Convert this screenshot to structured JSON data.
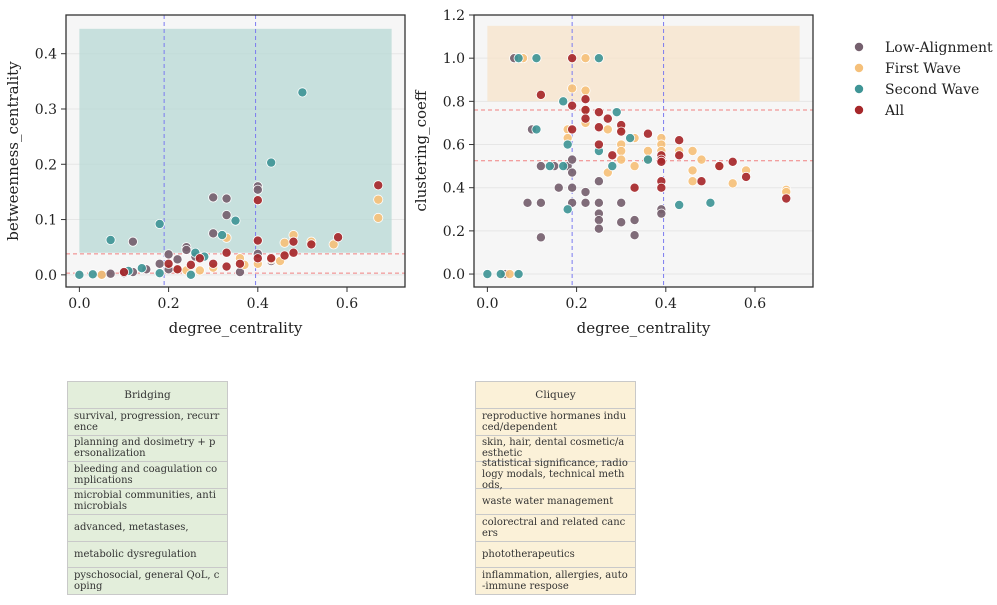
{
  "legend": {
    "entries": [
      {
        "label": "Low-Alignment",
        "color": "#75606e"
      },
      {
        "label": "First Wave",
        "color": "#f5c07a"
      },
      {
        "label": "Second Wave",
        "color": "#3f9596"
      },
      {
        "label": "All",
        "color": "#a6272a"
      }
    ]
  },
  "chart_data": [
    {
      "type": "scatter",
      "xlabel": "degree_centrality",
      "ylabel": "betweenness_centrality",
      "xlim": [
        -0.03,
        0.73
      ],
      "ylim": [
        -0.022,
        0.47
      ],
      "xticks": [
        "0.0",
        "0.2",
        "0.4",
        "0.6"
      ],
      "yticks": [
        "0.0",
        "0.1",
        "0.2",
        "0.3",
        "0.4"
      ],
      "shaded_region": {
        "x": [
          0.0,
          0.7
        ],
        "y": [
          0.04,
          0.445
        ],
        "color": "#b7d8d4"
      },
      "vlines": [
        0.19,
        0.395
      ],
      "hlines": [
        0.038,
        0.003
      ],
      "series": [
        {
          "name": "Low-Alignment",
          "points": [
            [
              0.05,
              0
            ],
            [
              0.07,
              0.002
            ],
            [
              0.1,
              0.003
            ],
            [
              0.12,
              0.005
            ],
            [
              0.12,
              0.06
            ],
            [
              0.15,
              0.01
            ],
            [
              0.18,
              0.02
            ],
            [
              0.2,
              0.01
            ],
            [
              0.2,
              0.037
            ],
            [
              0.22,
              0.028
            ],
            [
              0.24,
              0.05
            ],
            [
              0.24,
              0.045
            ],
            [
              0.26,
              0.033
            ],
            [
              0.3,
              0.075
            ],
            [
              0.3,
              0.14
            ],
            [
              0.33,
              0.138
            ],
            [
              0.33,
              0.108
            ],
            [
              0.36,
              0.005
            ],
            [
              0.4,
              0.16
            ],
            [
              0.4,
              0.154
            ],
            [
              0.4,
              0.038
            ],
            [
              0.43,
              0.025
            ]
          ]
        },
        {
          "name": "First Wave",
          "points": [
            [
              0.05,
              0
            ],
            [
              0.22,
              0.01
            ],
            [
              0.24,
              0.008
            ],
            [
              0.27,
              0.008
            ],
            [
              0.3,
              0.013
            ],
            [
              0.33,
              0.067
            ],
            [
              0.36,
              0.03
            ],
            [
              0.37,
              0.018
            ],
            [
              0.4,
              0.02
            ],
            [
              0.43,
              0.028
            ],
            [
              0.45,
              0.025
            ],
            [
              0.46,
              0.058
            ],
            [
              0.48,
              0.072
            ],
            [
              0.52,
              0.06
            ],
            [
              0.57,
              0.055
            ],
            [
              0.67,
              0.103
            ],
            [
              0.67,
              0.136
            ]
          ]
        },
        {
          "name": "Second Wave",
          "points": [
            [
              0.0,
              0
            ],
            [
              0.03,
              0.001
            ],
            [
              0.07,
              0.063
            ],
            [
              0.11,
              0.007
            ],
            [
              0.14,
              0.012
            ],
            [
              0.18,
              0.003
            ],
            [
              0.18,
              0.092
            ],
            [
              0.25,
              0.0
            ],
            [
              0.26,
              0.04
            ],
            [
              0.28,
              0.033
            ],
            [
              0.32,
              0.072
            ],
            [
              0.35,
              0.098
            ],
            [
              0.43,
              0.203
            ],
            [
              0.5,
              0.33
            ]
          ]
        },
        {
          "name": "All",
          "points": [
            [
              0.1,
              0.005
            ],
            [
              0.2,
              0.02
            ],
            [
              0.22,
              0.01
            ],
            [
              0.25,
              0.018
            ],
            [
              0.27,
              0.03
            ],
            [
              0.3,
              0.02
            ],
            [
              0.33,
              0.015
            ],
            [
              0.33,
              0.04
            ],
            [
              0.36,
              0.02
            ],
            [
              0.4,
              0.062
            ],
            [
              0.4,
              0.03
            ],
            [
              0.4,
              0.135
            ],
            [
              0.43,
              0.03
            ],
            [
              0.46,
              0.035
            ],
            [
              0.48,
              0.04
            ],
            [
              0.48,
              0.06
            ],
            [
              0.52,
              0.055
            ],
            [
              0.58,
              0.068
            ],
            [
              0.67,
              0.162
            ]
          ]
        }
      ]
    },
    {
      "type": "scatter",
      "xlabel": "degree_centrality",
      "ylabel": "clustering_coeff",
      "xlim": [
        -0.03,
        0.73
      ],
      "ylim": [
        -0.06,
        1.2
      ],
      "xticks": [
        "0.0",
        "0.2",
        "0.4",
        "0.6"
      ],
      "yticks": [
        "0.0",
        "0.2",
        "0.4",
        "0.6",
        "0.8",
        "1.0",
        "1.2"
      ],
      "shaded_region": {
        "x": [
          0.0,
          0.7
        ],
        "y": [
          0.8,
          1.15
        ],
        "color": "#f7e3c9"
      },
      "vlines": [
        0.19,
        0.395
      ],
      "hlines": [
        0.76,
        0.525
      ],
      "series": [
        {
          "name": "Low-Alignment",
          "points": [
            [
              0.04,
              0
            ],
            [
              0.06,
              1.0
            ],
            [
              0.09,
              0.33
            ],
            [
              0.1,
              0.67
            ],
            [
              0.12,
              0.33
            ],
            [
              0.12,
              0.17
            ],
            [
              0.12,
              0.5
            ],
            [
              0.15,
              0.5
            ],
            [
              0.16,
              0.4
            ],
            [
              0.18,
              0.5
            ],
            [
              0.19,
              0.4
            ],
            [
              0.19,
              0.47
            ],
            [
              0.19,
              0.33
            ],
            [
              0.19,
              0.53
            ],
            [
              0.22,
              0.38
            ],
            [
              0.22,
              0.33
            ],
            [
              0.25,
              0.33
            ],
            [
              0.25,
              0.28
            ],
            [
              0.25,
              0.25
            ],
            [
              0.25,
              0.21
            ],
            [
              0.25,
              0.43
            ],
            [
              0.3,
              0.33
            ],
            [
              0.3,
              0.24
            ],
            [
              0.33,
              0.18
            ],
            [
              0.33,
              0.25
            ],
            [
              0.39,
              0.3
            ],
            [
              0.39,
              0.28
            ]
          ]
        },
        {
          "name": "First Wave",
          "points": [
            [
              0.05,
              0
            ],
            [
              0.08,
              1.0
            ],
            [
              0.18,
              0.67
            ],
            [
              0.18,
              0.63
            ],
            [
              0.19,
              0.86
            ],
            [
              0.22,
              0.76
            ],
            [
              0.22,
              1.0
            ],
            [
              0.22,
              0.85
            ],
            [
              0.22,
              0.7
            ],
            [
              0.27,
              0.67
            ],
            [
              0.27,
              0.47
            ],
            [
              0.3,
              0.67
            ],
            [
              0.3,
              0.6
            ],
            [
              0.3,
              0.57
            ],
            [
              0.3,
              0.53
            ],
            [
              0.33,
              0.63
            ],
            [
              0.33,
              0.5
            ],
            [
              0.36,
              0.57
            ],
            [
              0.36,
              0.53
            ],
            [
              0.39,
              0.63
            ],
            [
              0.39,
              0.6
            ],
            [
              0.39,
              0.57
            ],
            [
              0.43,
              0.57
            ],
            [
              0.46,
              0.57
            ],
            [
              0.46,
              0.48
            ],
            [
              0.46,
              0.43
            ],
            [
              0.48,
              0.53
            ],
            [
              0.52,
              0.5
            ],
            [
              0.55,
              0.42
            ],
            [
              0.58,
              0.48
            ],
            [
              0.67,
              0.39
            ],
            [
              0.67,
              0.38
            ]
          ]
        },
        {
          "name": "Second Wave",
          "points": [
            [
              0.0,
              0
            ],
            [
              0.03,
              0
            ],
            [
              0.07,
              0
            ],
            [
              0.07,
              1.0
            ],
            [
              0.11,
              1.0
            ],
            [
              0.11,
              0.67
            ],
            [
              0.14,
              0.5
            ],
            [
              0.17,
              0.8
            ],
            [
              0.17,
              0.5
            ],
            [
              0.18,
              0.6
            ],
            [
              0.18,
              0.3
            ],
            [
              0.25,
              1.0
            ],
            [
              0.25,
              0.57
            ],
            [
              0.28,
              0.5
            ],
            [
              0.29,
              0.75
            ],
            [
              0.32,
              0.63
            ],
            [
              0.36,
              0.53
            ],
            [
              0.43,
              0.32
            ],
            [
              0.5,
              0.33
            ]
          ]
        },
        {
          "name": "All",
          "points": [
            [
              0.19,
              1.0
            ],
            [
              0.12,
              0.83
            ],
            [
              0.19,
              0.67
            ],
            [
              0.19,
              0.78
            ],
            [
              0.22,
              0.81
            ],
            [
              0.22,
              0.76
            ],
            [
              0.22,
              0.72
            ],
            [
              0.25,
              0.75
            ],
            [
              0.25,
              0.68
            ],
            [
              0.25,
              0.6
            ],
            [
              0.27,
              0.72
            ],
            [
              0.28,
              0.55
            ],
            [
              0.3,
              0.69
            ],
            [
              0.3,
              0.66
            ],
            [
              0.33,
              0.4
            ],
            [
              0.36,
              0.65
            ],
            [
              0.39,
              0.55
            ],
            [
              0.39,
              0.53
            ],
            [
              0.39,
              0.52
            ],
            [
              0.39,
              0.43
            ],
            [
              0.39,
              0.4
            ],
            [
              0.43,
              0.62
            ],
            [
              0.43,
              0.55
            ],
            [
              0.48,
              0.43
            ],
            [
              0.52,
              0.5
            ],
            [
              0.55,
              0.52
            ],
            [
              0.58,
              0.45
            ],
            [
              0.67,
              0.35
            ]
          ]
        }
      ]
    }
  ],
  "tables": {
    "bridging": {
      "header": "Bridging",
      "rows": [
        "survival, progression, recurrence",
        "planning and dosimetry + personalization",
        "bleeding and coagulation complications",
        "microbial communities, antimicrobials",
        "advanced, metastases,",
        "metabolic dysregulation",
        "pyschosocial, general QoL, coping"
      ]
    },
    "cliquey": {
      "header": "Cliquey",
      "rows": [
        "reproductive hormanes induced/dependent",
        "skin, hair, dental cosmetic/aesthetic",
        "statistical significance, radiology modals, technical methods,",
        "waste water management",
        "colorectral and related cancers",
        "phototherapeutics",
        "inflammation, allergies, auto-immune respose"
      ]
    }
  }
}
